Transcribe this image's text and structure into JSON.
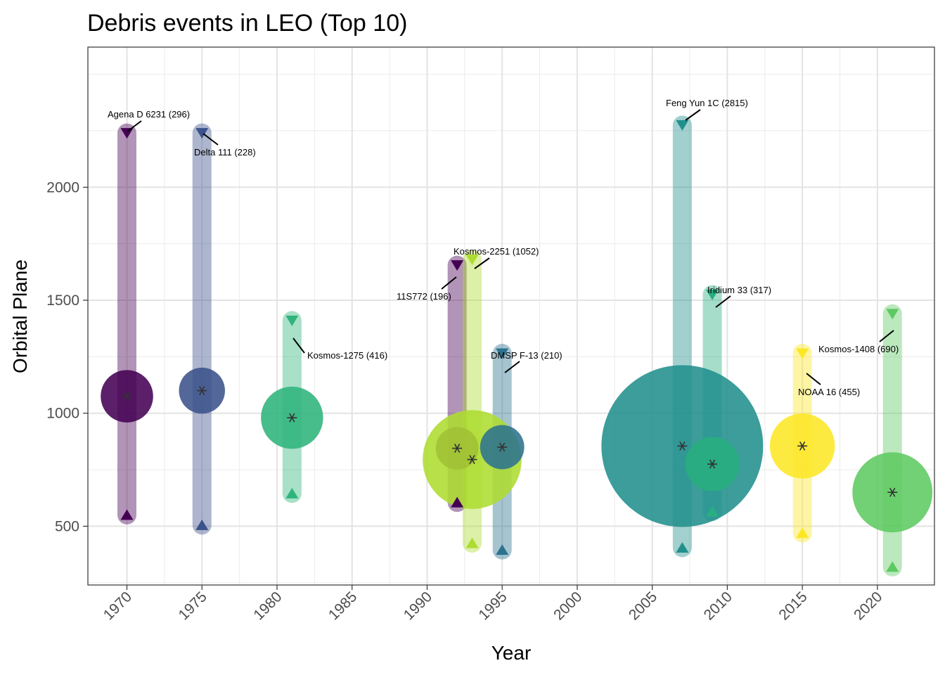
{
  "chart_data": {
    "type": "scatter",
    "title": "Debris events in LEO (Top 10)",
    "xlabel": "Year",
    "ylabel": "Orbital Plane",
    "xlim": [
      1967.4,
      2023.8
    ],
    "ylim": [
      240,
      2620
    ],
    "x_ticks": [
      1970,
      1975,
      1980,
      1985,
      1990,
      1995,
      2000,
      2005,
      2010,
      2015,
      2020
    ],
    "y_ticks": [
      500,
      1000,
      1500,
      2000
    ],
    "grid": true,
    "legend": "none",
    "events": [
      {
        "label": "Agena D 6231 (296)",
        "year": 1970,
        "apogee": 2240,
        "perigee": 550,
        "center": 1075,
        "debris": 296,
        "color": "#440154"
      },
      {
        "label": "Delta 111 (228)",
        "year": 1975,
        "apogee": 2240,
        "perigee": 505,
        "center": 1100,
        "debris": 228,
        "color": "#3b528b"
      },
      {
        "label": "Kosmos-1275 (416)",
        "year": 1981,
        "apogee": 1410,
        "perigee": 645,
        "center": 980,
        "debris": 416,
        "color": "#2fb47c"
      },
      {
        "label": "11S772 (196)",
        "year": 1992,
        "apogee": 1655,
        "perigee": 605,
        "center": 845,
        "debris": 196,
        "color": "#440154"
      },
      {
        "label": "Kosmos-2251 (1052)",
        "year": 1993,
        "apogee": 1680,
        "perigee": 425,
        "center": 795,
        "debris": 1052,
        "color": "#addc30"
      },
      {
        "label": "DMSP F-13 (210)",
        "year": 1995,
        "apogee": 1265,
        "perigee": 395,
        "center": 850,
        "debris": 210,
        "color": "#2c728e"
      },
      {
        "label": "Feng Yun 1C (2815)",
        "year": 2007,
        "apogee": 2275,
        "perigee": 405,
        "center": 855,
        "debris": 2815,
        "color": "#21908d"
      },
      {
        "label": "Iridium 33 (317)",
        "year": 2009,
        "apogee": 1525,
        "perigee": 565,
        "center": 775,
        "debris": 317,
        "color": "#28ae80"
      },
      {
        "label": "NOAA 16 (455)",
        "year": 2015,
        "apogee": 1265,
        "perigee": 470,
        "center": 855,
        "debris": 455,
        "color": "#fde725"
      },
      {
        "label": "Kosmos-1408 (690)",
        "year": 2021,
        "apogee": 1440,
        "perigee": 320,
        "center": 650,
        "debris": 690,
        "color": "#5ec962"
      }
    ]
  }
}
